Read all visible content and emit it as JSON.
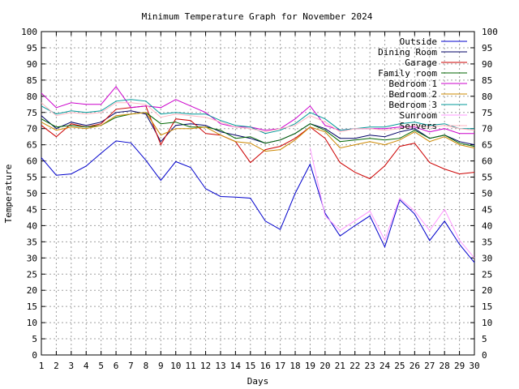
{
  "chart_data": {
    "type": "line",
    "title": "Minimum Temperature Graph for November 2024",
    "xlabel": "Days",
    "ylabel": "Temperature",
    "xlim": [
      1,
      30
    ],
    "ylim": [
      0,
      100
    ],
    "x_ticks": [
      1,
      2,
      3,
      4,
      5,
      6,
      7,
      8,
      9,
      10,
      11,
      12,
      13,
      14,
      15,
      16,
      17,
      18,
      19,
      20,
      21,
      22,
      23,
      24,
      25,
      26,
      27,
      28,
      29,
      30
    ],
    "y_ticks": [
      0,
      5,
      10,
      15,
      20,
      25,
      30,
      35,
      40,
      45,
      50,
      55,
      60,
      65,
      70,
      75,
      80,
      85,
      90,
      95,
      100
    ],
    "x": [
      1,
      2,
      3,
      4,
      5,
      6,
      7,
      8,
      9,
      10,
      11,
      12,
      13,
      14,
      15,
      16,
      17,
      18,
      19,
      20,
      21,
      22,
      23,
      24,
      25,
      26,
      27,
      28,
      29,
      30
    ],
    "grid": true,
    "legend": "top-right",
    "series": [
      {
        "name": "Outside",
        "color": "#0000cc",
        "values": [
          61,
          55.6,
          56,
          58.4,
          62.4,
          66.2,
          65.6,
          60.2,
          54,
          59.8,
          58,
          51.4,
          49,
          48.8,
          48.5,
          41.4,
          38.8,
          50,
          59,
          43.8,
          36.8,
          40,
          43,
          33.4,
          48,
          43.6,
          35.4,
          41.4,
          34.2,
          28.6
        ]
      },
      {
        "name": "Dining Room",
        "color": "#000066",
        "values": [
          74,
          70,
          72,
          71,
          72,
          75,
          75.5,
          74.5,
          66,
          71,
          71.5,
          71,
          69,
          68,
          67,
          65.5,
          66.5,
          68.5,
          71.5,
          70,
          67,
          67,
          68,
          67.5,
          69,
          70,
          67,
          68,
          66,
          65
        ]
      },
      {
        "name": "Garage",
        "color": "#cc0000",
        "values": [
          71,
          67.5,
          71.5,
          70.5,
          71.5,
          76,
          76.5,
          77,
          65,
          73,
          72.5,
          68.5,
          68,
          66,
          59.5,
          63.5,
          64.5,
          67,
          70.5,
          67,
          59.5,
          56.5,
          54.5,
          58.5,
          64.5,
          65.5,
          59.5,
          57.5,
          56,
          56.5
        ]
      },
      {
        "name": "Family room",
        "color": "#006600",
        "values": [
          73,
          70.5,
          71,
          70.5,
          71,
          73.5,
          74.5,
          75,
          71.5,
          72,
          70.5,
          70.5,
          69.5,
          67,
          67.5,
          65.5,
          66.5,
          68.5,
          71.5,
          69.5,
          66,
          66.5,
          67,
          66.5,
          67,
          69.5,
          67,
          68,
          65.5,
          64.5
        ]
      },
      {
        "name": "Bedroom 1",
        "color": "#cc00cc",
        "values": [
          81,
          76.5,
          78,
          77.5,
          77.5,
          83,
          76.5,
          77,
          76.5,
          79,
          77,
          75,
          71.5,
          70.5,
          70.5,
          69.5,
          70,
          73,
          77,
          71,
          69.5,
          70,
          70,
          70,
          70.5,
          70.5,
          69,
          70,
          68.5,
          68.5
        ]
      },
      {
        "name": "Bedroom 2",
        "color": "#cc8800",
        "values": [
          72,
          69.5,
          70.5,
          70,
          71,
          74,
          74.5,
          75,
          68,
          70,
          70,
          70.5,
          68,
          66,
          65.5,
          63,
          63.5,
          66.5,
          70.5,
          69,
          64,
          65,
          66,
          65,
          66.5,
          69,
          66,
          67.5,
          65,
          64
        ]
      },
      {
        "name": "Bedroom 3",
        "color": "#009999",
        "values": [
          77,
          74.5,
          75.5,
          75,
          75.5,
          78.5,
          79,
          78.5,
          74.5,
          75,
          74.5,
          74.5,
          72.5,
          71,
          70.5,
          68.5,
          69.5,
          71.5,
          75,
          73,
          69.5,
          70,
          70.5,
          70.5,
          71.5,
          72,
          71,
          71.5,
          70,
          70
        ]
      },
      {
        "name": "Sunroom",
        "color": "#ff99ff",
        "values": [
          null,
          null,
          null,
          null,
          null,
          null,
          null,
          null,
          null,
          null,
          null,
          null,
          null,
          null,
          null,
          null,
          null,
          null,
          64,
          43,
          38.5,
          41.5,
          44.5,
          35.5,
          48.5,
          44.5,
          38.5,
          45,
          35.5,
          30
        ]
      },
      {
        "name": "Servers",
        "color": "#ffb6c1",
        "values": [
          78,
          74,
          75,
          74.5,
          75,
          78,
          78,
          77.5,
          73.5,
          74.5,
          74,
          73.5,
          72,
          70.5,
          70,
          69,
          70,
          71,
          74,
          72,
          69,
          70,
          70,
          69.5,
          70,
          71,
          70.5,
          71,
          70,
          69.5
        ]
      }
    ]
  }
}
